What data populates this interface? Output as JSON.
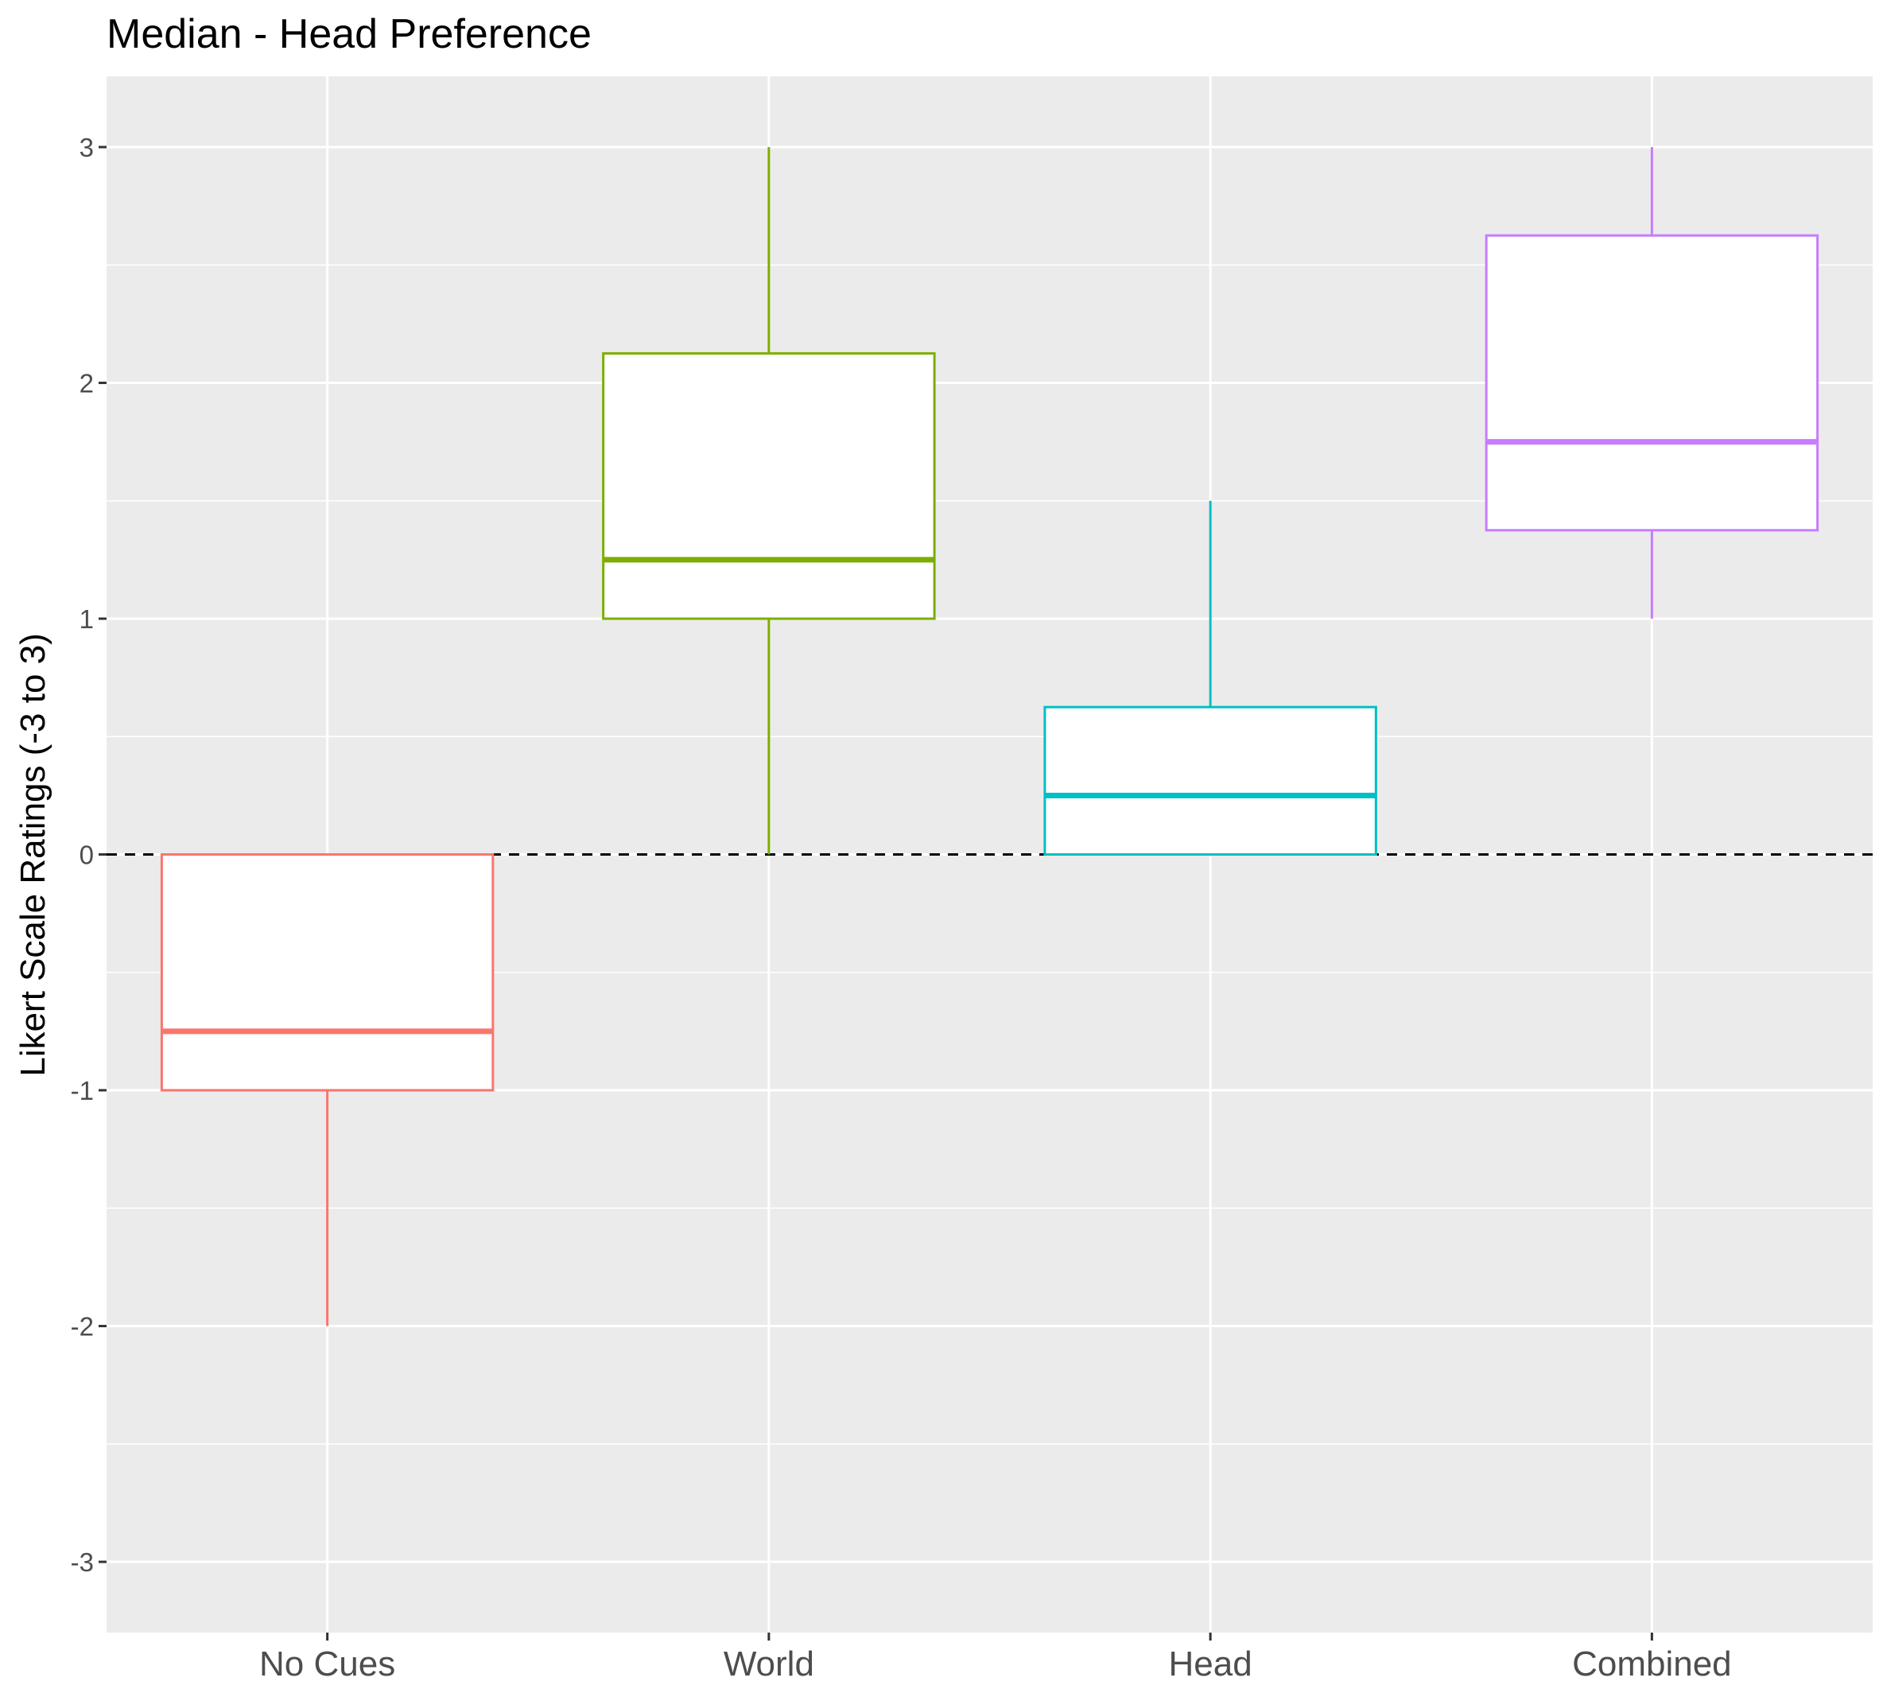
{
  "chart_data": {
    "type": "boxplot",
    "title": "Median - Head Preference",
    "xlabel": "",
    "ylabel": "Likert Scale Ratings (-3 to 3)",
    "ylim": [
      -3.3,
      3.3
    ],
    "yticks": [
      3,
      2,
      1,
      0,
      -1,
      -2,
      -3
    ],
    "ytick_labels": [
      "3",
      "2",
      "1",
      "0",
      "-1",
      "-2",
      "-3"
    ],
    "reference_line": {
      "y": 0,
      "style": "dashed",
      "color": "#000000"
    },
    "grid": true,
    "legend": "none",
    "panel_background": "#ebebeb",
    "categories": [
      "No Cues",
      "World",
      "Head",
      "Combined"
    ],
    "boxes": [
      {
        "category": "No Cues",
        "color": "#F8766D",
        "min": -2,
        "q1": -1,
        "median": -0.75,
        "q3": 0,
        "max": 0
      },
      {
        "category": "World",
        "color": "#7CAE00",
        "min": 0,
        "q1": 1,
        "median": 1.25,
        "q3": 2.125,
        "max": 3
      },
      {
        "category": "Head",
        "color": "#00BFC4",
        "min": 0,
        "q1": 0,
        "median": 0.25,
        "q3": 0.625,
        "max": 1.5
      },
      {
        "category": "Combined",
        "color": "#C77CFF",
        "min": 1,
        "q1": 1.375,
        "median": 1.75,
        "q3": 2.625,
        "max": 3
      }
    ]
  }
}
